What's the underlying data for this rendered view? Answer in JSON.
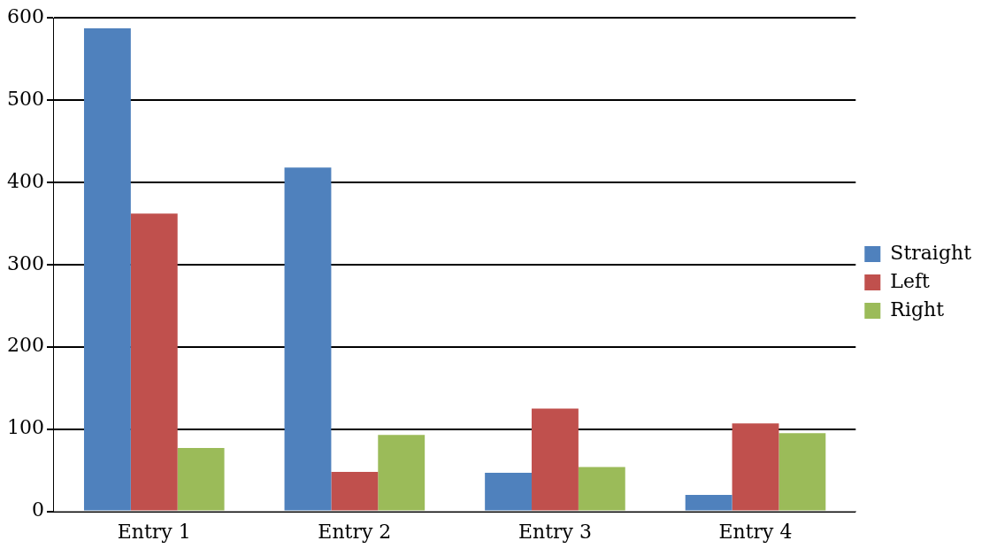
{
  "chart_data": {
    "type": "bar",
    "categories": [
      "Entry 1",
      "Entry 2",
      "Entry 3",
      "Entry 4"
    ],
    "series": [
      {
        "name": "Straight",
        "color": "#4f81bd",
        "values": [
          587,
          418,
          47,
          20
        ]
      },
      {
        "name": "Left",
        "color": "#c0504d",
        "values": [
          362,
          48,
          125,
          107
        ]
      },
      {
        "name": "Right",
        "color": "#9bbb59",
        "values": [
          77,
          93,
          54,
          95
        ]
      }
    ],
    "ylim": [
      0,
      600
    ],
    "yticks": [
      0,
      100,
      200,
      300,
      400,
      500,
      600
    ],
    "grid": "y",
    "legend": "right"
  }
}
